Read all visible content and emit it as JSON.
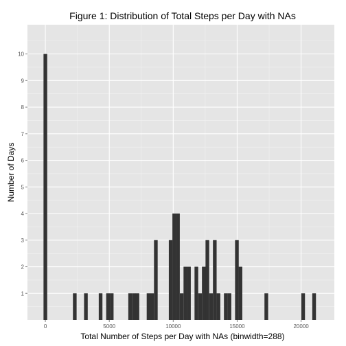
{
  "chart_data": {
    "type": "bar",
    "title": "Figure 1: Distribution of Total Steps per Day with NAs",
    "xlabel": "Total Number of Steps per Day with NAs (binwidth=288)",
    "ylabel": "Number of Days",
    "binwidth": 288,
    "xlim": [
      -1400,
      22600
    ],
    "ylim": [
      0,
      11.1
    ],
    "x_ticks": [
      0,
      5000,
      10000,
      15000,
      20000
    ],
    "x_tick_labels": [
      "0",
      "5000",
      "10000",
      "15000",
      "20000"
    ],
    "y_ticks": [
      1,
      2,
      3,
      4,
      5,
      6,
      7,
      8,
      9,
      10
    ],
    "y_tick_labels": [
      "1",
      "2",
      "3",
      "4",
      "5",
      "6",
      "7",
      "8",
      "9",
      "10"
    ],
    "grid": true,
    "colors": {
      "panel": "#e5e5e5",
      "grid": "#ffffff",
      "bar": "#333333"
    },
    "bins": [
      {
        "x": 0,
        "count": 10
      },
      {
        "x": 2300,
        "count": 1
      },
      {
        "x": 3170,
        "count": 1
      },
      {
        "x": 4320,
        "count": 1
      },
      {
        "x": 4900,
        "count": 1
      },
      {
        "x": 5190,
        "count": 1
      },
      {
        "x": 6630,
        "count": 1
      },
      {
        "x": 6920,
        "count": 1
      },
      {
        "x": 7200,
        "count": 1
      },
      {
        "x": 8070,
        "count": 1
      },
      {
        "x": 8350,
        "count": 1
      },
      {
        "x": 8640,
        "count": 3
      },
      {
        "x": 9800,
        "count": 3
      },
      {
        "x": 10080,
        "count": 4
      },
      {
        "x": 10370,
        "count": 4
      },
      {
        "x": 10660,
        "count": 1
      },
      {
        "x": 10950,
        "count": 2
      },
      {
        "x": 11230,
        "count": 2
      },
      {
        "x": 11810,
        "count": 2
      },
      {
        "x": 12100,
        "count": 1
      },
      {
        "x": 12390,
        "count": 2
      },
      {
        "x": 12670,
        "count": 3
      },
      {
        "x": 12960,
        "count": 1
      },
      {
        "x": 13250,
        "count": 3
      },
      {
        "x": 13540,
        "count": 1
      },
      {
        "x": 14110,
        "count": 1
      },
      {
        "x": 14400,
        "count": 1
      },
      {
        "x": 14980,
        "count": 3
      },
      {
        "x": 15260,
        "count": 2
      },
      {
        "x": 17280,
        "count": 1
      },
      {
        "x": 20160,
        "count": 1
      },
      {
        "x": 21020,
        "count": 1
      }
    ]
  }
}
